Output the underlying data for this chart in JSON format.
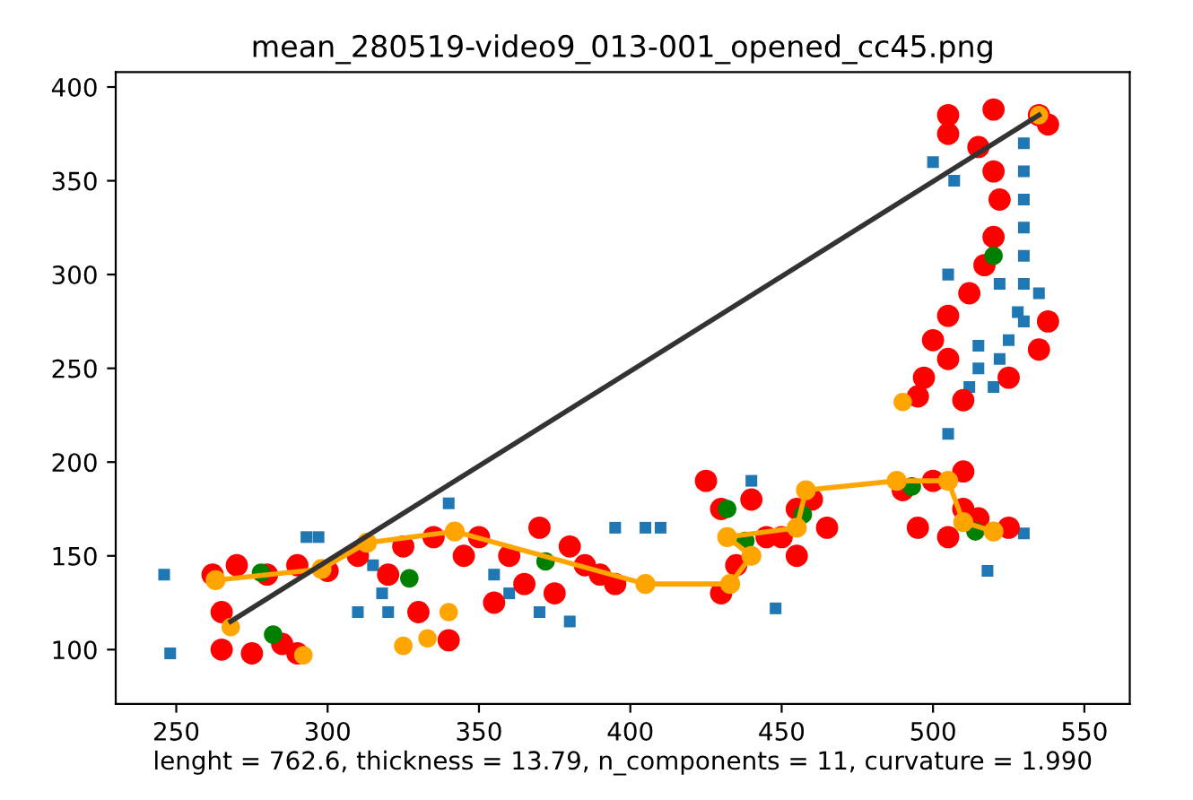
{
  "chart_data": {
    "type": "scatter",
    "title": "mean_280519-video9_013-001_opened_cc45.png",
    "xlabel": "lenght = 762.6, thickness = 13.79, n_components = 11, curvature = 1.990",
    "xlim": [
      230,
      565
    ],
    "ylim": [
      71,
      408
    ],
    "xticks": [
      250,
      300,
      350,
      400,
      450,
      500,
      550
    ],
    "yticks": [
      100,
      150,
      200,
      250,
      300,
      350,
      400
    ],
    "grid": false,
    "series": [
      {
        "marker": "square",
        "color": "#1f77b4",
        "x": [
          246,
          248,
          293,
          297,
          315,
          318,
          340,
          355,
          360,
          395,
          405,
          410,
          440,
          448,
          500,
          507,
          505,
          505,
          518,
          530,
          530,
          530,
          530,
          530,
          530,
          530,
          528,
          522,
          515,
          525,
          515,
          522,
          512,
          520,
          530,
          535,
          320,
          310,
          370,
          380
        ],
        "values": [
          140,
          98,
          160,
          160,
          145,
          130,
          178,
          140,
          130,
          165,
          165,
          165,
          190,
          122,
          360,
          350,
          300,
          215,
          142,
          162,
          370,
          355,
          340,
          325,
          310,
          295,
          280,
          295,
          262,
          265,
          250,
          255,
          240,
          240,
          275,
          290,
          120,
          120,
          120,
          115
        ]
      },
      {
        "marker": "circle",
        "color": "#ff0000",
        "x": [
          505,
          520,
          535,
          538,
          505,
          515,
          520,
          522,
          520,
          517,
          512,
          505,
          500,
          505,
          497,
          495,
          510,
          525,
          535,
          538,
          262,
          270,
          280,
          290,
          300,
          310,
          265,
          275,
          285,
          290,
          265,
          320,
          325,
          330,
          340,
          345,
          335,
          350,
          360,
          370,
          380,
          390,
          355,
          365,
          375,
          385,
          395,
          425,
          430,
          440,
          445,
          435,
          430,
          450,
          455,
          460,
          465,
          455,
          490,
          500,
          510,
          495,
          505,
          515,
          525,
          510
        ],
        "values": [
          385,
          388,
          385,
          380,
          375,
          368,
          355,
          340,
          320,
          305,
          290,
          278,
          265,
          255,
          245,
          235,
          233,
          245,
          260,
          275,
          140,
          145,
          140,
          145,
          142,
          150,
          100,
          98,
          103,
          98,
          120,
          140,
          155,
          120,
          105,
          150,
          160,
          160,
          150,
          165,
          155,
          140,
          125,
          135,
          130,
          145,
          135,
          190,
          175,
          180,
          160,
          145,
          130,
          160,
          175,
          180,
          165,
          150,
          185,
          190,
          175,
          165,
          160,
          170,
          165,
          195
        ]
      },
      {
        "marker": "circle",
        "color": "#008000",
        "x": [
          278,
          282,
          327,
          372,
          432,
          438,
          457,
          493,
          514,
          520
        ],
        "values": [
          141,
          108,
          138,
          147,
          175,
          158,
          172,
          187,
          163,
          310
        ]
      },
      {
        "marker": "circle",
        "color": "#ffa500",
        "x": [
          268,
          292,
          325,
          333,
          340,
          490,
          535
        ],
        "values": [
          112,
          97,
          102,
          106,
          120,
          232,
          385
        ]
      },
      {
        "type": "line",
        "marker": "circle",
        "color": "#ffa500",
        "x": [
          263,
          298,
          313,
          342,
          405,
          433,
          440,
          432,
          455,
          458,
          488,
          505,
          510,
          520
        ],
        "values": [
          137,
          143,
          157,
          163,
          135,
          135,
          150,
          160,
          165,
          185,
          190,
          190,
          168,
          163
        ]
      },
      {
        "type": "line",
        "marker": "none",
        "color": "#333333",
        "x": [
          268,
          535
        ],
        "values": [
          115,
          385
        ]
      }
    ]
  }
}
